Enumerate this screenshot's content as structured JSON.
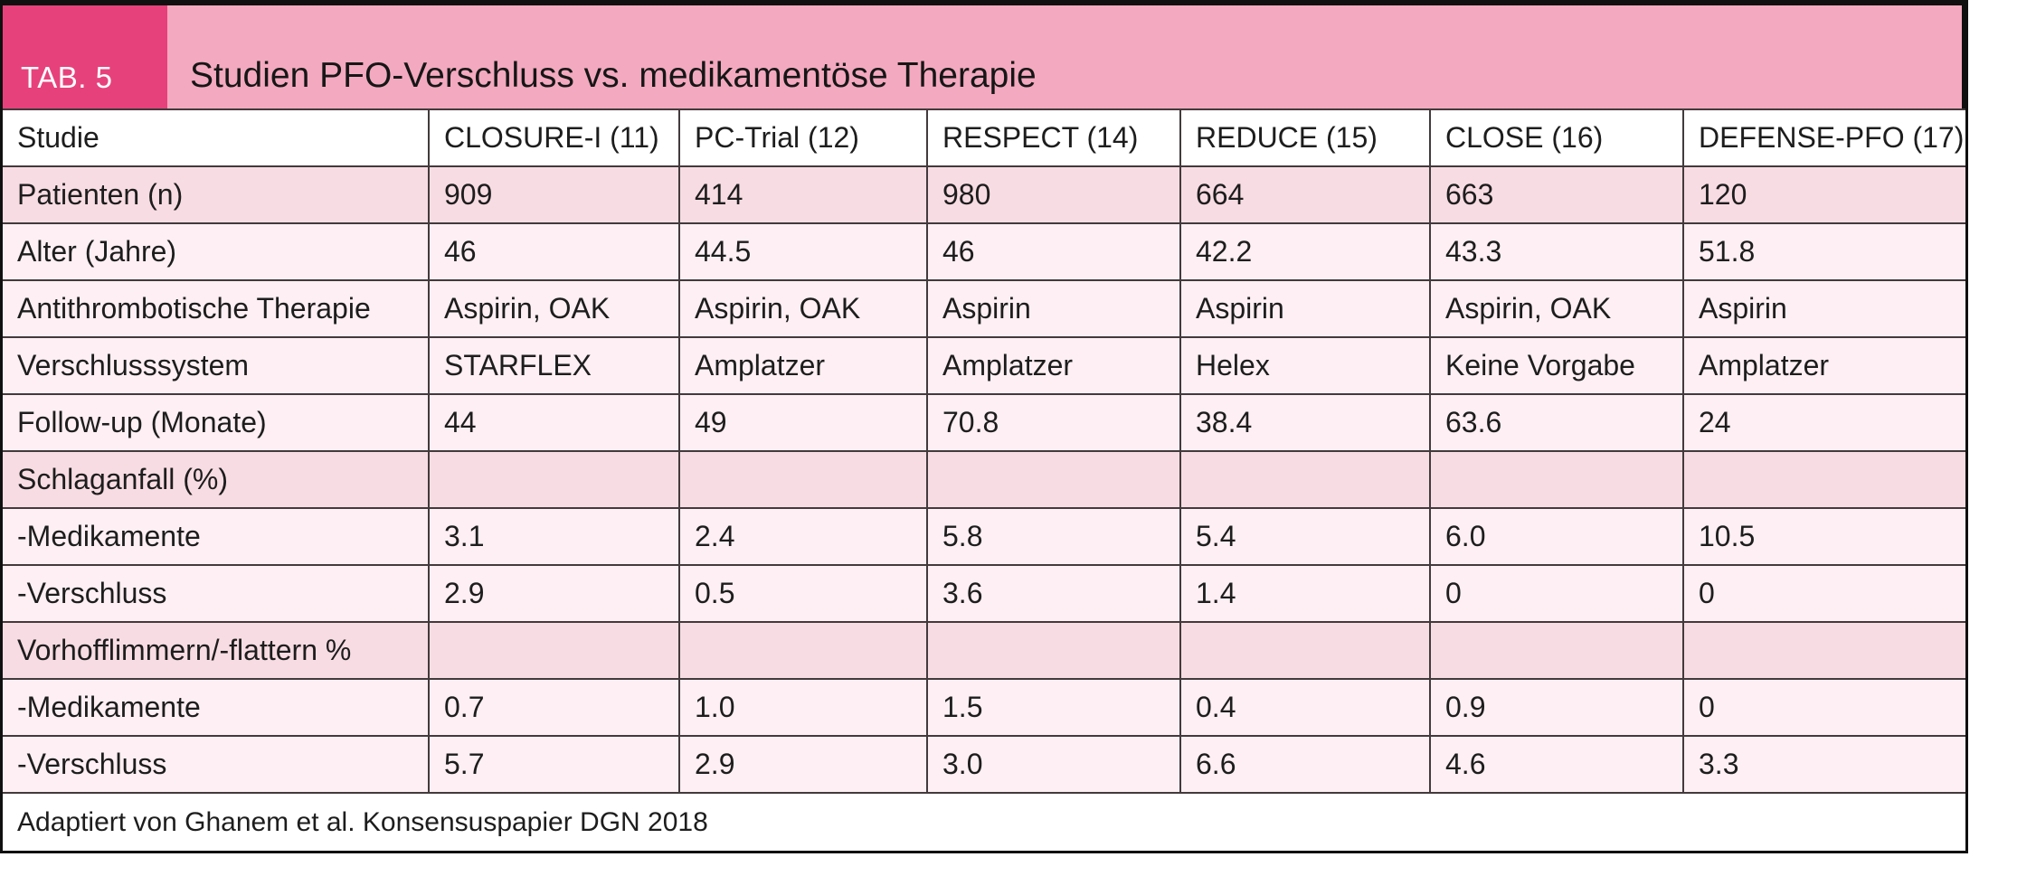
{
  "banner": {
    "tag": "TAB. 5",
    "title": "Studien PFO-Verschluss vs. medikamentöse Therapie"
  },
  "colors": {
    "tab_box": "#e7417b",
    "banner": "#f3a9bf",
    "row_dark": "#f8dce3",
    "row_light": "#fdeff3",
    "grid_line": "#423a3c",
    "outer_border": "#101010"
  },
  "table": {
    "columns": [
      "Studie",
      "CLOSURE-I (11)",
      "PC-Trial (12)",
      "RESPECT (14)",
      "REDUCE (15)",
      "CLOSE (16)",
      "DEFENSE-PFO (17)"
    ],
    "rows": [
      {
        "label": "Patienten (n)",
        "emphasis": true,
        "values": [
          "909",
          "414",
          "980",
          "664",
          "663",
          "120"
        ]
      },
      {
        "label": "Alter (Jahre)",
        "emphasis": false,
        "values": [
          "46",
          "44.5",
          "46",
          "42.2",
          "43.3",
          "51.8"
        ]
      },
      {
        "label": "Antithrombotische Therapie",
        "emphasis": false,
        "values": [
          "Aspirin, OAK",
          "Aspirin, OAK",
          "Aspirin",
          "Aspirin",
          "Aspirin, OAK",
          "Aspirin"
        ]
      },
      {
        "label": "Verschlusssystem",
        "emphasis": false,
        "values": [
          "STARFLEX",
          "Amplatzer",
          "Amplatzer",
          "Helex",
          "Keine Vorgabe",
          "Amplatzer"
        ]
      },
      {
        "label": "Follow-up (Monate)",
        "emphasis": false,
        "values": [
          "44",
          "49",
          "70.8",
          "38.4",
          "63.6",
          "24"
        ]
      },
      {
        "label": "Schlaganfall (%)",
        "emphasis": true,
        "values": [
          "",
          "",
          "",
          "",
          "",
          ""
        ]
      },
      {
        "label": "-Medikamente",
        "emphasis": false,
        "values": [
          "3.1",
          "2.4",
          "5.8",
          "5.4",
          "6.0",
          "10.5"
        ]
      },
      {
        "label": "-Verschluss",
        "emphasis": false,
        "values": [
          "2.9",
          "0.5",
          "3.6",
          "1.4",
          "0",
          "0"
        ]
      },
      {
        "label": "Vorhofflimmern/-flattern %",
        "emphasis": true,
        "values": [
          "",
          "",
          "",
          "",
          "",
          ""
        ]
      },
      {
        "label": "-Medikamente",
        "emphasis": false,
        "values": [
          "0.7",
          "1.0",
          "1.5",
          "0.4",
          "0.9",
          "0"
        ]
      },
      {
        "label": "-Verschluss",
        "emphasis": false,
        "values": [
          "5.7",
          "2.9",
          "3.0",
          "6.6",
          "4.6",
          "3.3"
        ]
      }
    ],
    "footnote": "Adaptiert von Ghanem et al. Konsensuspapier DGN 2018"
  }
}
